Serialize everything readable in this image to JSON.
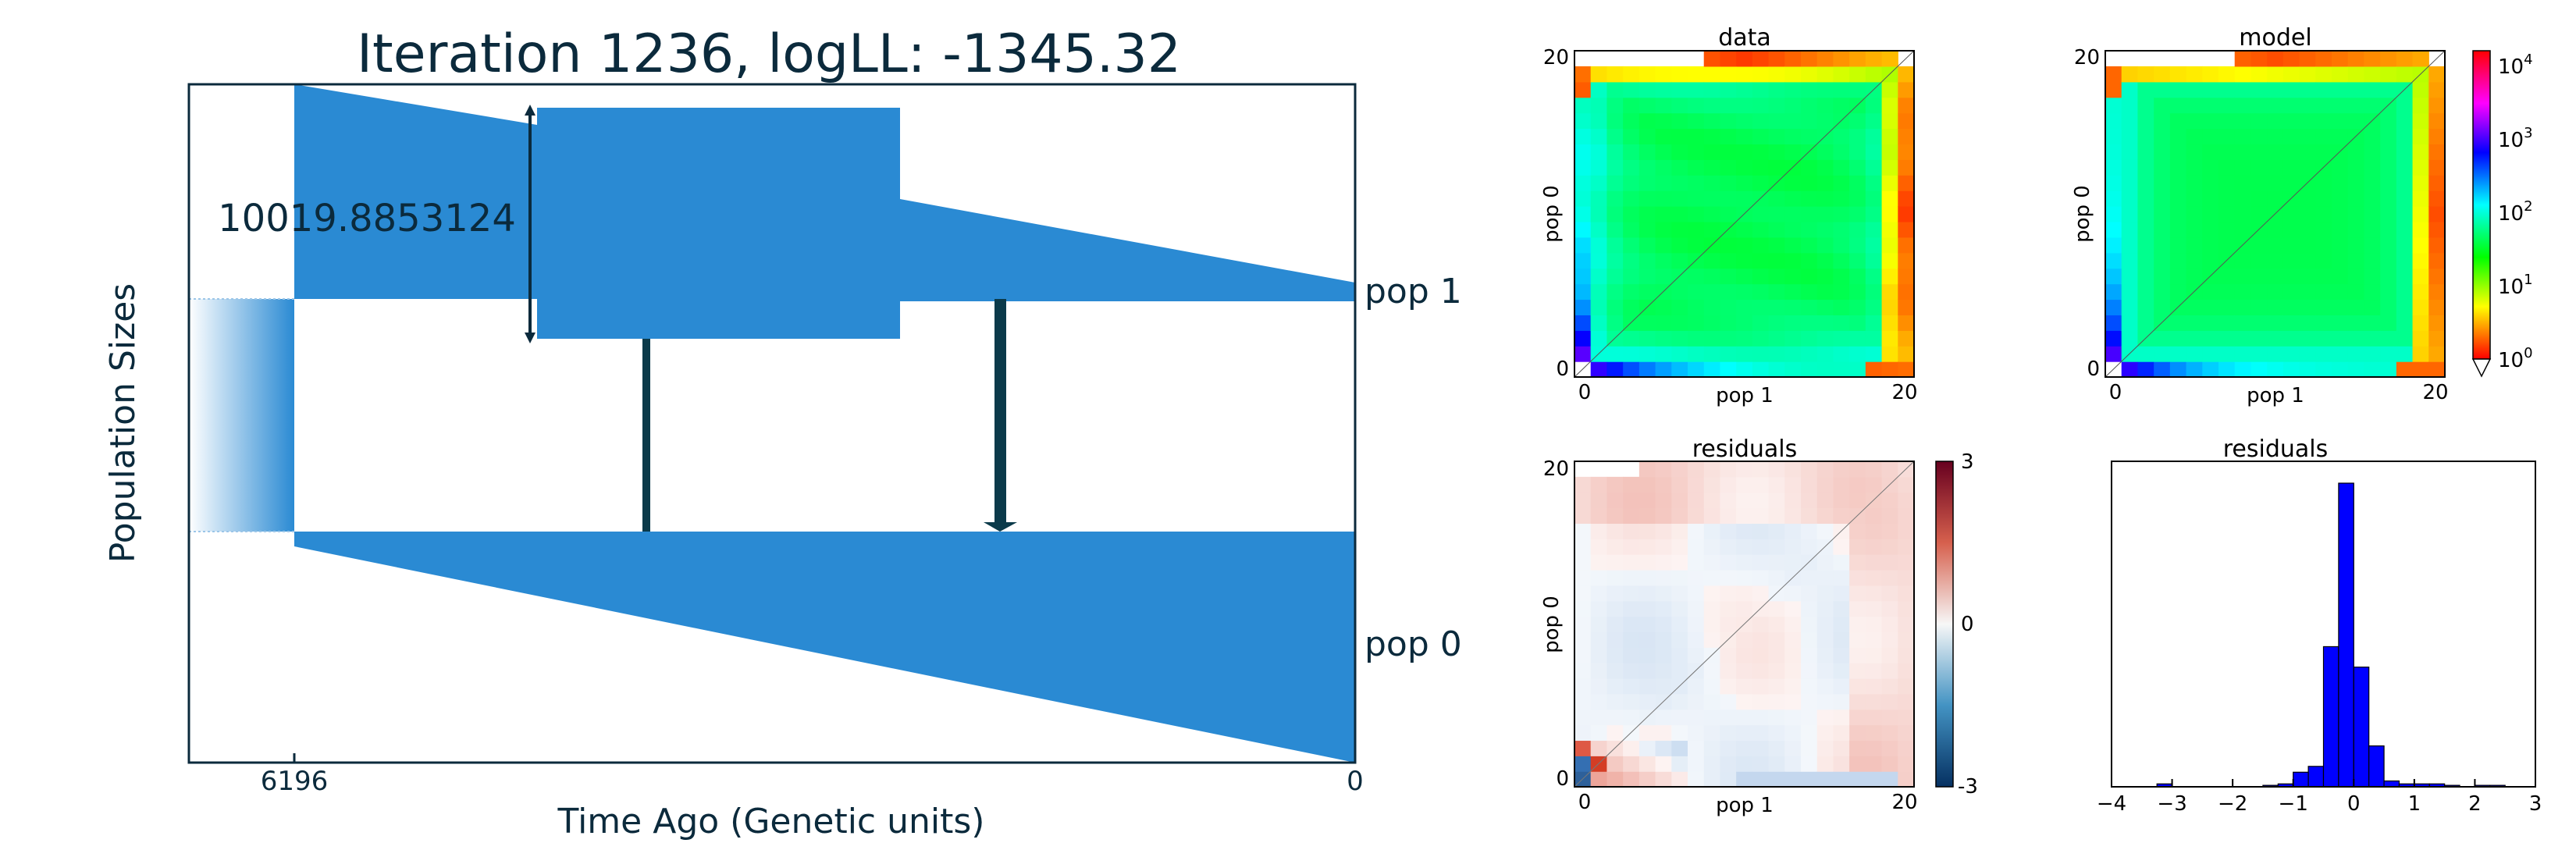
{
  "colors": {
    "population": "#2a8ad3",
    "migration": "#0b3a4a",
    "text": "#0b2a3c"
  },
  "chart_data": [
    {
      "type": "diagram",
      "title": "Iteration 1236, logLL:   -1345.32",
      "xlabel": "Time Ago (Genetic units)",
      "ylabel": "Population Sizes",
      "xticks": [
        "6196",
        "0"
      ],
      "size_annotation": "10019.8853124",
      "populations": [
        "pop 1",
        "pop 0"
      ]
    },
    {
      "type": "heatmap",
      "title": "data",
      "xlabel": "pop 1",
      "ylabel": "pop 0",
      "xlim": [
        0,
        20
      ],
      "ylim": [
        0,
        20
      ],
      "xticks": [
        "0",
        "20"
      ],
      "yticks": [
        "0",
        "20"
      ],
      "colorscale": "log"
    },
    {
      "type": "heatmap",
      "title": "model",
      "xlabel": "pop 1",
      "ylabel": "pop 0",
      "xlim": [
        0,
        20
      ],
      "ylim": [
        0,
        20
      ],
      "xticks": [
        "0",
        "20"
      ],
      "yticks": [
        "0",
        "20"
      ],
      "colorscale": "log",
      "colorbar": {
        "ticks": [
          {
            "base": "10",
            "exp": "4"
          },
          {
            "base": "10",
            "exp": "3"
          },
          {
            "base": "10",
            "exp": "2"
          },
          {
            "base": "10",
            "exp": "1"
          },
          {
            "base": "10",
            "exp": "0"
          }
        ],
        "range": [
          1,
          10000
        ]
      }
    },
    {
      "type": "heatmap",
      "title": "residuals",
      "xlabel": "pop 1",
      "ylabel": "pop 0",
      "xlim": [
        0,
        20
      ],
      "ylim": [
        0,
        20
      ],
      "xticks": [
        "0",
        "20"
      ],
      "yticks": [
        "0",
        "20"
      ],
      "colorbar": {
        "ticks": [
          "3",
          "0",
          "-3"
        ],
        "range": [
          -3,
          3
        ]
      }
    },
    {
      "type": "bar",
      "title": "residuals",
      "xlim": [
        -4,
        3
      ],
      "xticks": [
        "−4",
        "−3",
        "−2",
        "−1",
        "0",
        "1",
        "2",
        "3"
      ],
      "bin_width": 0.25,
      "bins": [
        {
          "x0": -3.25,
          "count": 1
        },
        {
          "x0": -1.5,
          "count": 0.5
        },
        {
          "x0": -1.25,
          "count": 1
        },
        {
          "x0": -1.0,
          "count": 5
        },
        {
          "x0": -0.75,
          "count": 7
        },
        {
          "x0": -0.5,
          "count": 48
        },
        {
          "x0": -0.25,
          "count": 104
        },
        {
          "x0": 0.0,
          "count": 41
        },
        {
          "x0": 0.25,
          "count": 14
        },
        {
          "x0": 0.5,
          "count": 2
        },
        {
          "x0": 0.75,
          "count": 1
        },
        {
          "x0": 1.0,
          "count": 1
        },
        {
          "x0": 1.25,
          "count": 1
        },
        {
          "x0": 1.5,
          "count": 0.5
        },
        {
          "x0": 2.0,
          "count": 0.5
        },
        {
          "x0": 2.25,
          "count": 0.5
        }
      ]
    }
  ]
}
